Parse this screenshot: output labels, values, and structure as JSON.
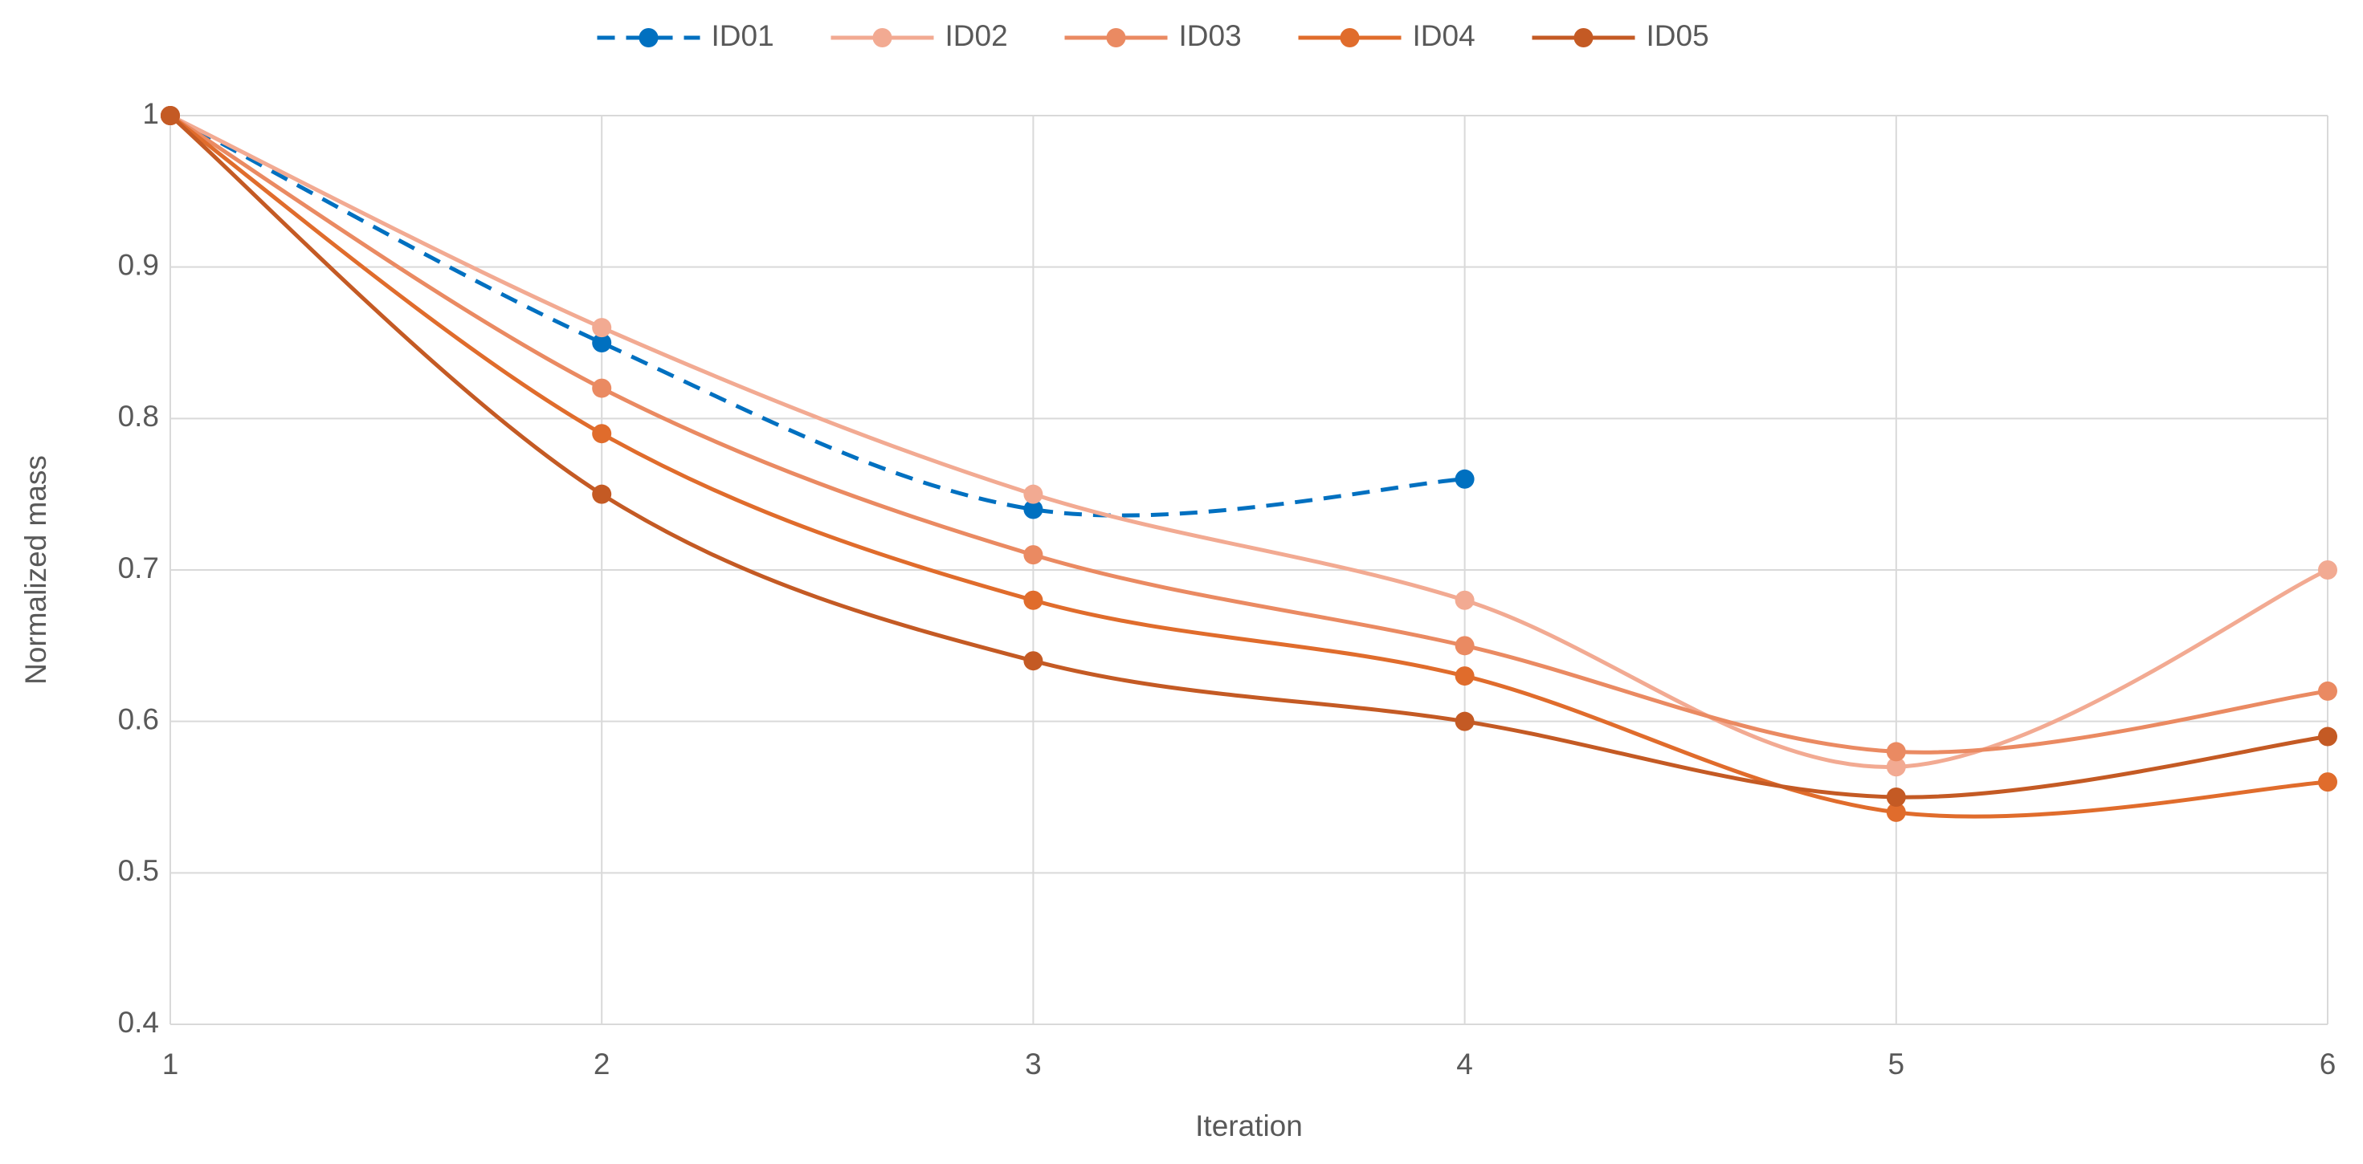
{
  "chart_data": {
    "type": "line",
    "x_label": "Iteration",
    "y_label": "Normalized mass",
    "x": [
      1,
      2,
      3,
      4,
      5,
      6
    ],
    "series": [
      {
        "name": "ID01",
        "color": "#0070c0",
        "dashed": true,
        "values": [
          1,
          0.85,
          0.74,
          0.76,
          null,
          null
        ]
      },
      {
        "name": "ID02",
        "color": "#f2aa92",
        "values": [
          1,
          0.86,
          0.75,
          0.68,
          0.57,
          0.7
        ]
      },
      {
        "name": "ID03",
        "color": "#ea8a62",
        "values": [
          1,
          0.82,
          0.71,
          0.65,
          0.58,
          0.62
        ]
      },
      {
        "name": "ID04",
        "color": "#e06c2c",
        "values": [
          1,
          0.79,
          0.68,
          0.63,
          0.54,
          0.56
        ]
      },
      {
        "name": "ID05",
        "color": "#c45a24",
        "values": [
          1,
          0.75,
          0.64,
          0.6,
          0.55,
          0.59
        ]
      }
    ],
    "xlim": [
      1,
      6
    ],
    "xticks": [
      1,
      2,
      3,
      4,
      5,
      6
    ],
    "ylim": [
      0.4,
      1
    ],
    "yticks": [
      0.4,
      0.5,
      0.6,
      0.7,
      0.8,
      0.9,
      1
    ],
    "grid": true,
    "smooth": true,
    "legend": "top"
  }
}
